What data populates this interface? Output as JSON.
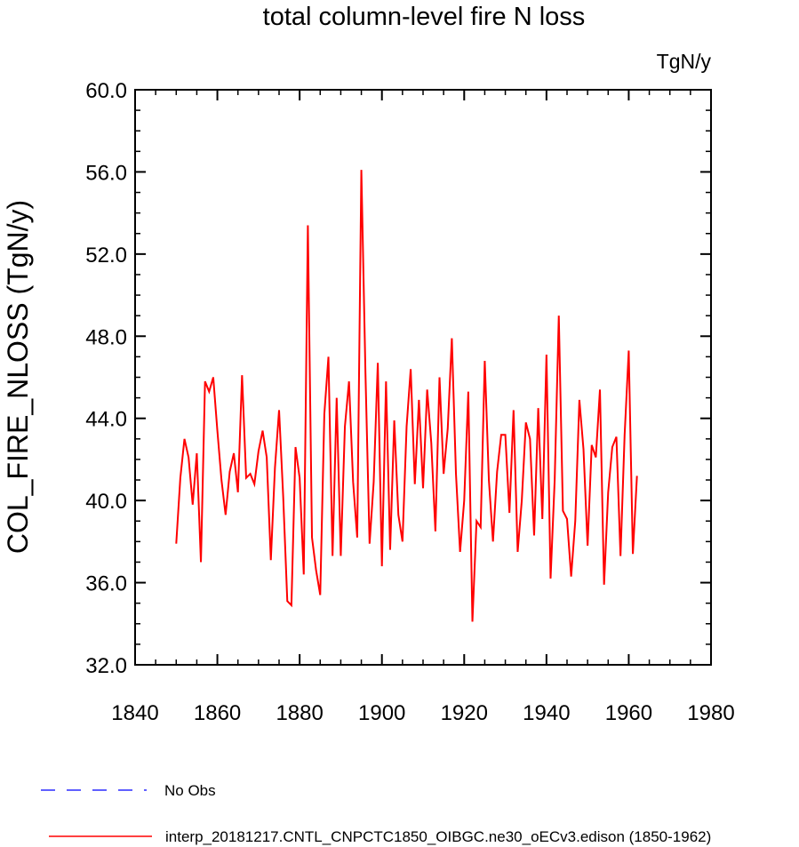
{
  "chart_data": {
    "type": "line",
    "title": "total column-level fire N loss",
    "units": "TgN/y",
    "xlabel": "",
    "ylabel": "COL_FIRE_NLOSS  (TgN/y)",
    "xlim": [
      1840,
      1980
    ],
    "ylim": [
      32,
      60
    ],
    "xticks": [
      1840,
      1860,
      1880,
      1900,
      1920,
      1940,
      1960,
      1980
    ],
    "yticks": [
      32,
      36,
      40,
      44,
      48,
      52,
      56,
      60
    ],
    "xtick_labels": [
      "1840",
      "1860",
      "1880",
      "1900",
      "1920",
      "1940",
      "1960",
      "1980"
    ],
    "ytick_labels": [
      "32.0",
      "36.0",
      "40.0",
      "44.0",
      "48.0",
      "52.0",
      "56.0",
      "60.0"
    ],
    "series": [
      {
        "name": "No Obs",
        "color": "#0000ff",
        "dash": "dashed",
        "x": [],
        "values": []
      },
      {
        "name": "interp_20181217.CNTL_CNPCTC1850_OIBGC.ne30_oECv3.edison (1850-1962)",
        "color": "#ff0000",
        "dash": "solid",
        "x_start": 1850,
        "x_end": 1962,
        "values": [
          37.9,
          41.1,
          43.0,
          42.1,
          39.8,
          42.3,
          37.0,
          45.8,
          45.3,
          46.0,
          43.4,
          41.0,
          39.3,
          41.4,
          42.3,
          40.4,
          46.1,
          41.1,
          41.3,
          40.8,
          42.4,
          43.4,
          42.1,
          37.1,
          41.6,
          44.4,
          40.2,
          35.1,
          34.9,
          42.6,
          41.1,
          36.4,
          53.4,
          38.2,
          36.6,
          35.4,
          44.2,
          47.0,
          37.3,
          45.0,
          37.3,
          43.6,
          45.8,
          40.9,
          38.2,
          56.1,
          46.2,
          37.9,
          40.9,
          46.7,
          36.8,
          45.8,
          37.6,
          43.9,
          39.3,
          38.0,
          43.6,
          46.4,
          40.8,
          44.9,
          40.6,
          45.4,
          42.8,
          38.5,
          46.0,
          41.3,
          43.5,
          47.9,
          41.3,
          37.5,
          40.0,
          45.3,
          34.1,
          39.0,
          38.7,
          46.8,
          41.0,
          38.0,
          41.4,
          43.2,
          43.2,
          39.4,
          44.4,
          37.5,
          40.0,
          43.8,
          43.0,
          38.3,
          44.5,
          39.1,
          47.1,
          36.2,
          41.0,
          49.0,
          39.5,
          39.1,
          36.3,
          39.0,
          44.9,
          42.5,
          37.8,
          42.7,
          42.1,
          45.4,
          35.9,
          40.4,
          42.6,
          43.1,
          37.3,
          43.2,
          47.3,
          37.4,
          41.2
        ]
      }
    ],
    "legend_position": "bottom-left"
  }
}
